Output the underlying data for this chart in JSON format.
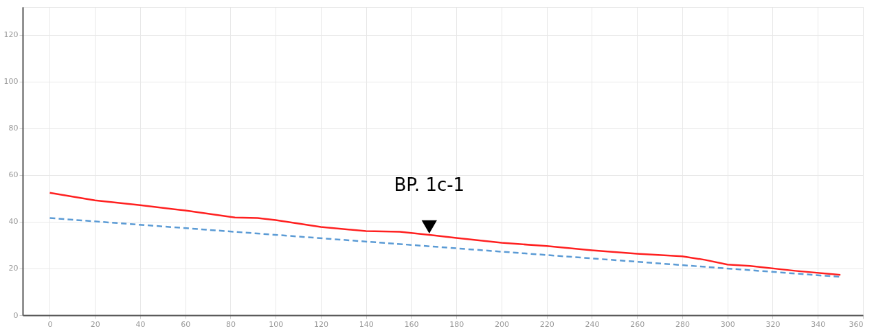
{
  "chart_data": {
    "type": "line",
    "series": [
      {
        "color": "#ff2020",
        "line_style": "solid",
        "x": [
          0,
          20,
          40,
          60,
          82,
          92,
          100,
          120,
          140,
          155,
          170,
          180,
          200,
          220,
          240,
          260,
          280,
          290,
          300,
          310,
          330,
          350
        ],
        "values": [
          52.4,
          49.2,
          47.1,
          44.8,
          41.8,
          41.6,
          40.7,
          37.8,
          36,
          35.7,
          34.2,
          33.1,
          31,
          29.6,
          27.8,
          26.3,
          25.2,
          23.7,
          21.7,
          21.1,
          19,
          17.3
        ]
      },
      {
        "color": "#5b9bd5",
        "line_style": "dashed",
        "x": [
          0,
          350
        ],
        "values": [
          41.6,
          16.4
        ]
      }
    ],
    "xlim": [
      -12,
      360
    ],
    "xticks": [
      0,
      20,
      40,
      60,
      80,
      100,
      120,
      140,
      160,
      180,
      200,
      220,
      240,
      260,
      280,
      300,
      320,
      340,
      360
    ],
    "ylim": [
      0,
      132
    ],
    "yticks": [
      0,
      20,
      40,
      60,
      80,
      100,
      120
    ],
    "grid": true,
    "marker": "none",
    "annotations": [
      {
        "text": "BP. 1c-1",
        "x": 168,
        "y": 37.8
      }
    ]
  }
}
